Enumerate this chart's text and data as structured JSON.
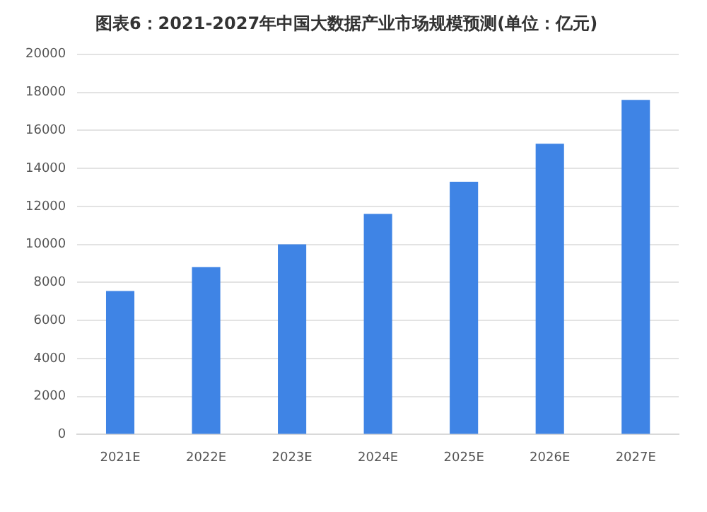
{
  "chart_data": {
    "type": "bar",
    "title": "图表6：2021-2027年中国大数据产业市场规模预测(单位：亿元)",
    "categories": [
      "2021E",
      "2022E",
      "2023E",
      "2024E",
      "2025E",
      "2026E",
      "2027E"
    ],
    "values": [
      7550,
      8800,
      10000,
      11600,
      13300,
      15300,
      17600
    ],
    "color": "#3f84e5",
    "ylim": [
      0,
      20000
    ],
    "yticks": [
      0,
      2000,
      4000,
      6000,
      8000,
      10000,
      12000,
      14000,
      16000,
      18000,
      20000
    ],
    "grid": "y",
    "legend": false
  }
}
